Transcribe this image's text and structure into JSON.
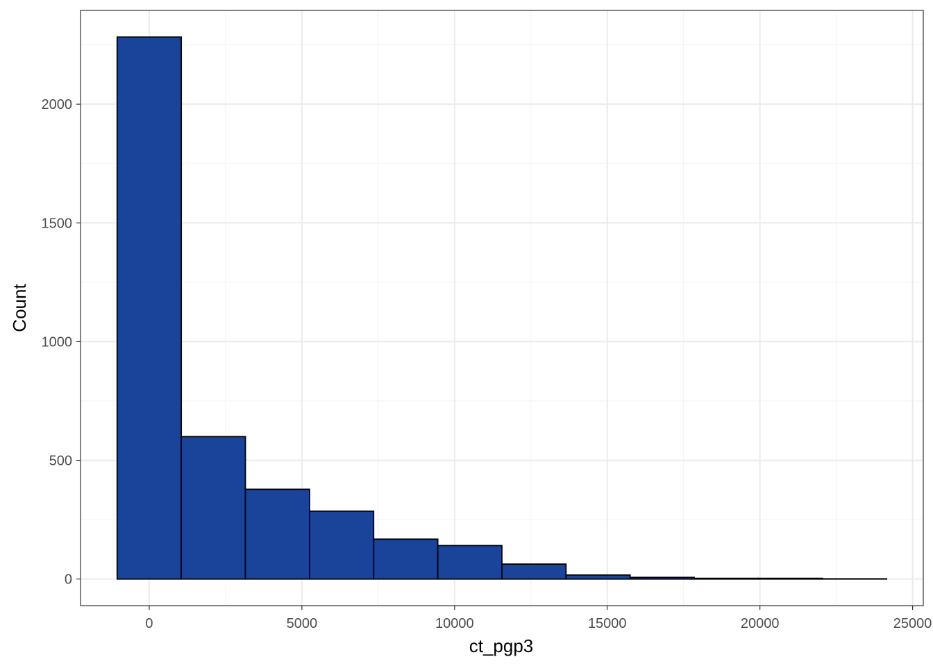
{
  "chart_data": {
    "type": "bar",
    "subtype": "histogram",
    "title": "",
    "xlabel": "ct_pgp3",
    "ylabel": "Count",
    "xlim": [
      -2250,
      25350
    ],
    "ylim": [
      -112,
      2395
    ],
    "x_ticks": [
      0,
      5000,
      10000,
      15000,
      20000,
      25000
    ],
    "y_ticks": [
      0,
      500,
      1000,
      1500,
      2000
    ],
    "x_minor_ticks": [
      2500,
      7500,
      12500,
      17500,
      22500
    ],
    "y_minor_ticks": [
      250,
      750,
      1250,
      1750,
      2250
    ],
    "grid": true,
    "theme": "bw",
    "bar_fill": "#1A4499",
    "bar_stroke": "#000000",
    "bins": [
      {
        "x_min": -1050,
        "x_max": 1050,
        "count": 2283
      },
      {
        "x_min": 1050,
        "x_max": 3150,
        "count": 600
      },
      {
        "x_min": 3150,
        "x_max": 5250,
        "count": 378
      },
      {
        "x_min": 5250,
        "x_max": 7350,
        "count": 286
      },
      {
        "x_min": 7350,
        "x_max": 9450,
        "count": 168
      },
      {
        "x_min": 9450,
        "x_max": 11550,
        "count": 141
      },
      {
        "x_min": 11550,
        "x_max": 13650,
        "count": 63
      },
      {
        "x_min": 13650,
        "x_max": 15750,
        "count": 17
      },
      {
        "x_min": 15750,
        "x_max": 17850,
        "count": 7
      },
      {
        "x_min": 17850,
        "x_max": 19950,
        "count": 3
      },
      {
        "x_min": 19950,
        "x_max": 22050,
        "count": 3
      },
      {
        "x_min": 22050,
        "x_max": 24150,
        "count": 1
      }
    ]
  }
}
